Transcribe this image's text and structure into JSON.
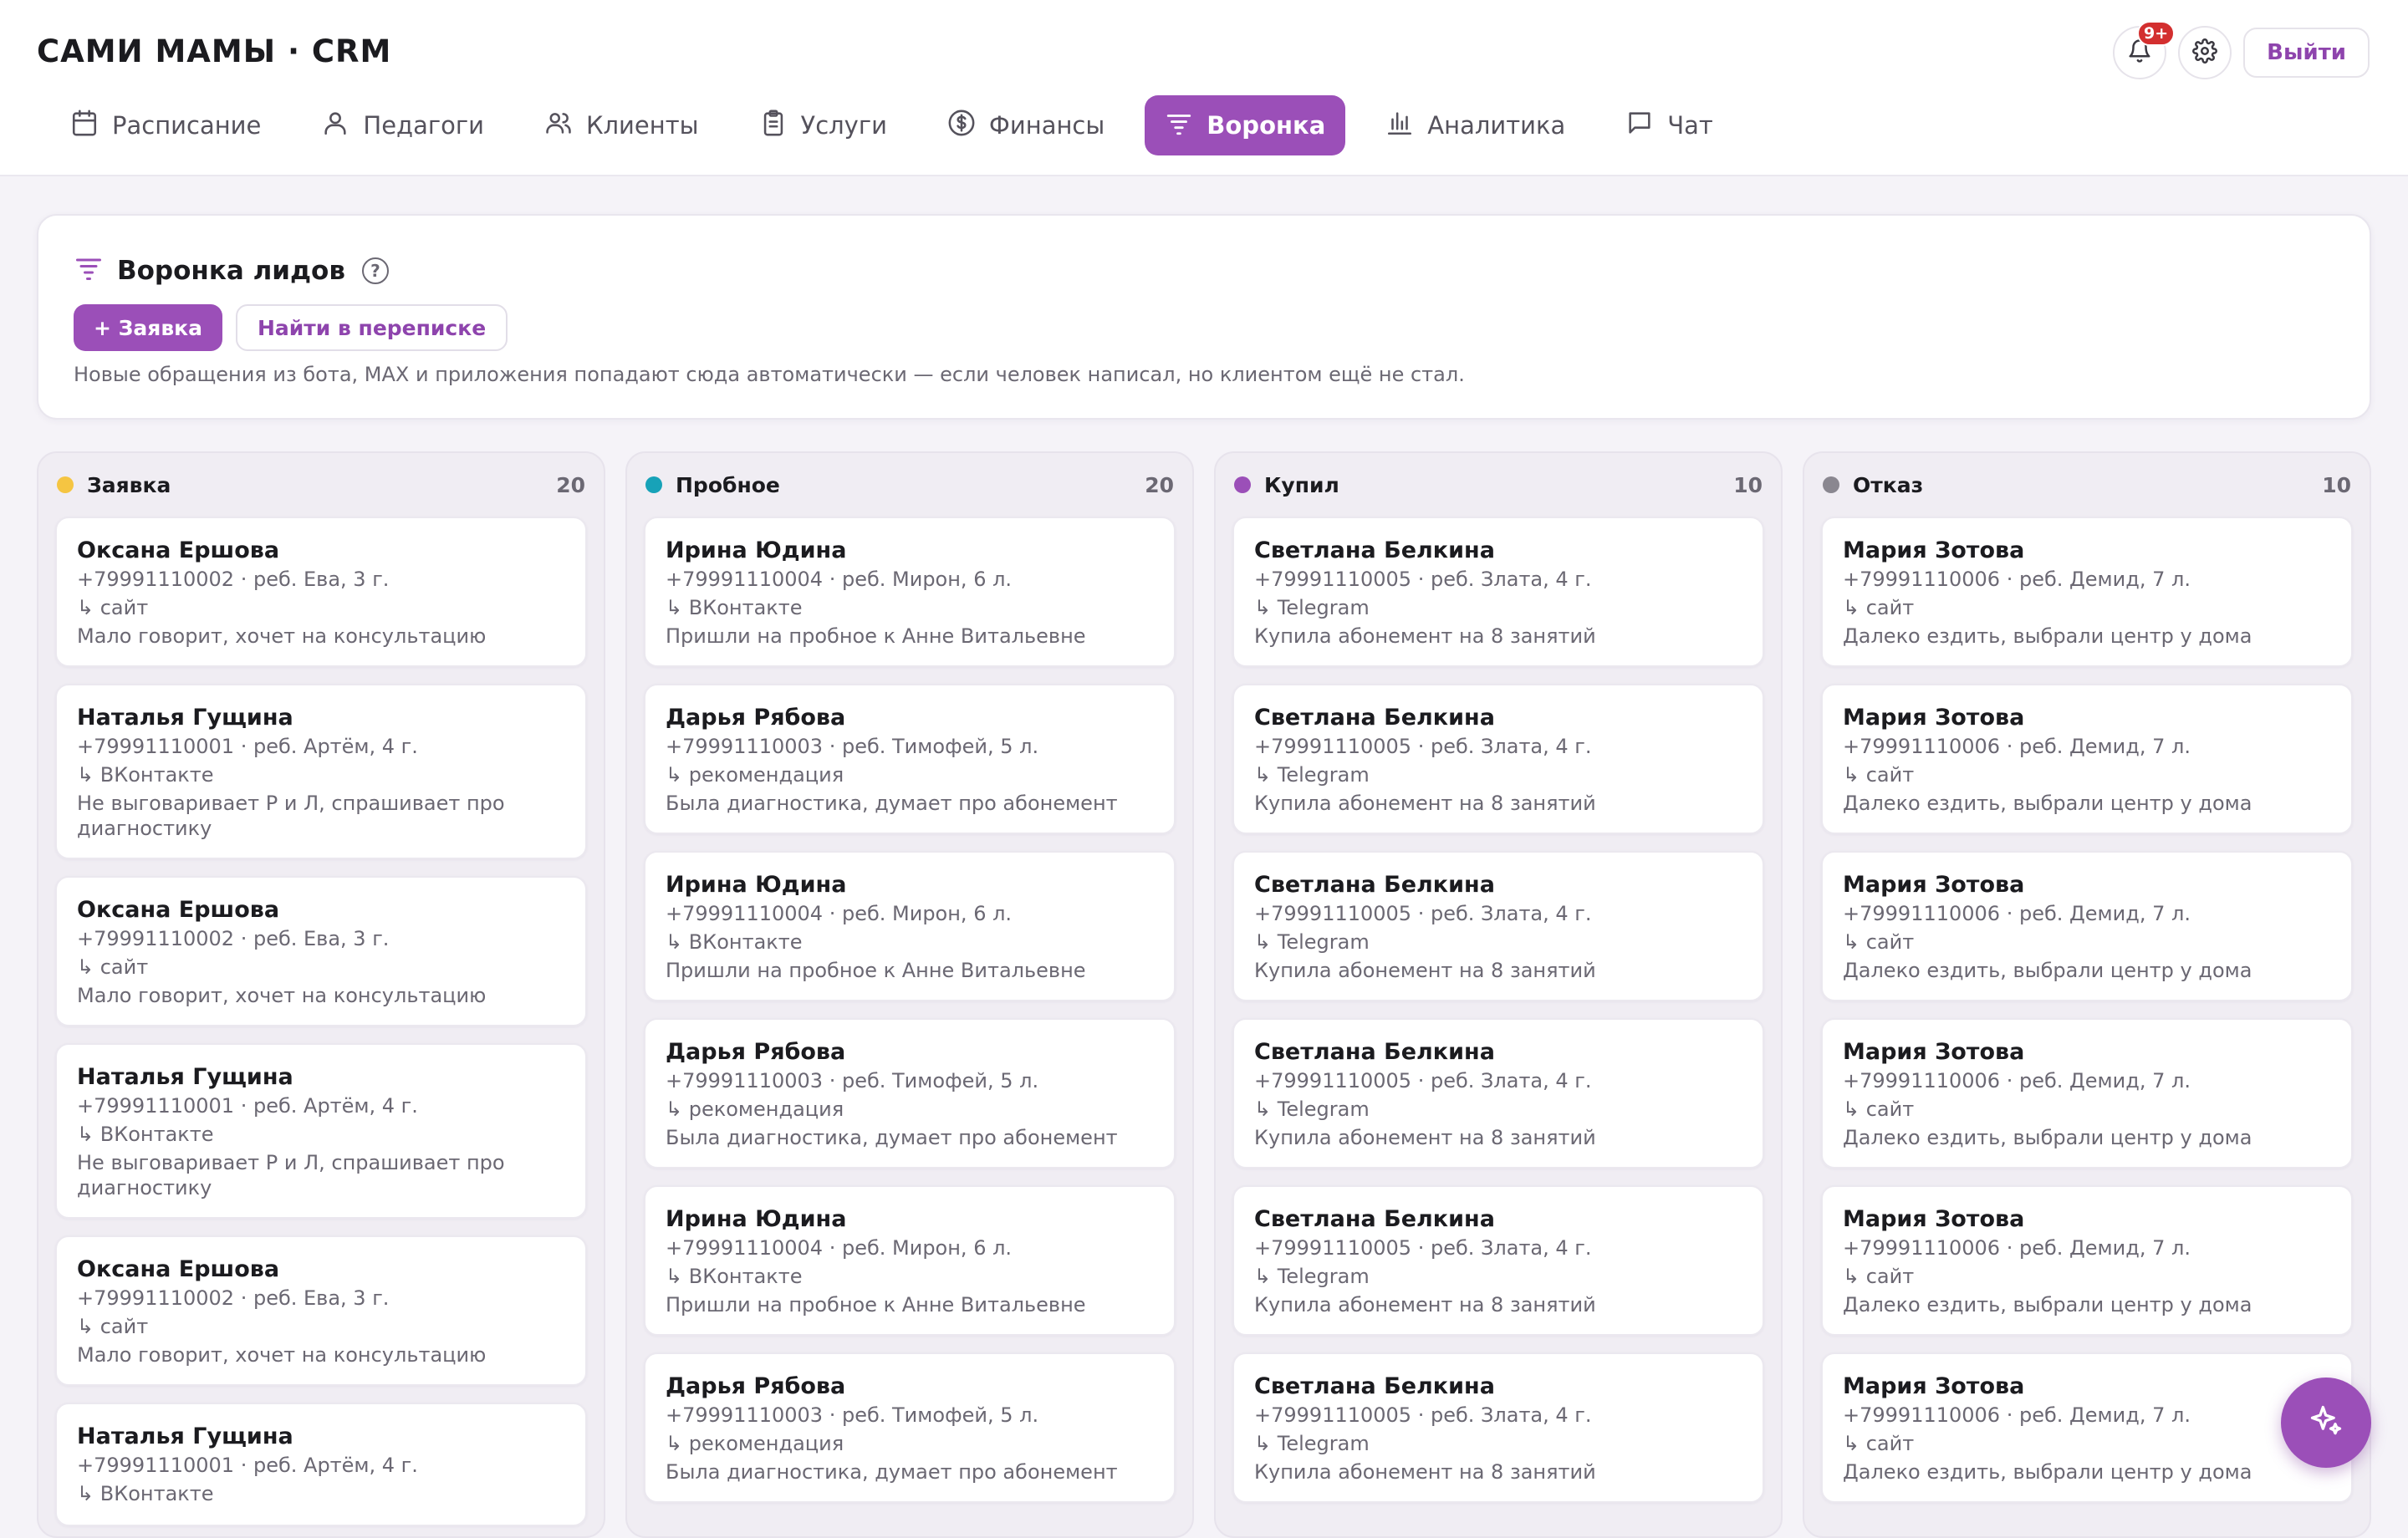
{
  "app": {
    "title": "САМИ МАМЫ · CRM"
  },
  "header": {
    "notifications_badge": "9+",
    "notifications_icon": "bell-icon",
    "settings_icon": "gear-icon",
    "logout_label": "Выйти"
  },
  "nav": {
    "items": [
      {
        "label": "Расписание",
        "icon": "calendar-icon"
      },
      {
        "label": "Педагоги",
        "icon": "user-icon"
      },
      {
        "label": "Клиенты",
        "icon": "users-icon"
      },
      {
        "label": "Услуги",
        "icon": "clipboard-icon"
      },
      {
        "label": "Финансы",
        "icon": "dollar-icon"
      },
      {
        "label": "Воронка",
        "icon": "funnel-icon"
      },
      {
        "label": "Аналитика",
        "icon": "bar-chart-icon"
      },
      {
        "label": "Чат",
        "icon": "chat-icon"
      }
    ],
    "active": "Воронка"
  },
  "intro": {
    "title": "Воронка лидов",
    "help": "?",
    "add_button": "+ Заявка",
    "find_button": "Найти в переписке",
    "note": "Новые обращения из бота, MAX и приложения попадают сюда автоматически — если человек написал, но клиентом ещё не стал."
  },
  "columns": [
    {
      "name": "Заявка",
      "count": "20",
      "color": "#f5c542",
      "cards": [
        {
          "name": "Оксана Ершова",
          "meta": "+79991110002 · реб. Ева, 3 г.",
          "source": "↳ сайт",
          "note": "Мало говорит, хочет на консультацию"
        },
        {
          "name": "Наталья Гущина",
          "meta": "+79991110001 · реб. Артём, 4 г.",
          "source": "↳ ВКонтакте",
          "note": "Не выговаривает Р и Л, спрашивает про диагностику"
        },
        {
          "name": "Оксана Ершова",
          "meta": "+79991110002 · реб. Ева, 3 г.",
          "source": "↳ сайт",
          "note": "Мало говорит, хочет на консультацию"
        },
        {
          "name": "Наталья Гущина",
          "meta": "+79991110001 · реб. Артём, 4 г.",
          "source": "↳ ВКонтакте",
          "note": "Не выговаривает Р и Л, спрашивает про диагностику"
        },
        {
          "name": "Оксана Ершова",
          "meta": "+79991110002 · реб. Ева, 3 г.",
          "source": "↳ сайт",
          "note": "Мало говорит, хочет на консультацию"
        },
        {
          "name": "Наталья Гущина",
          "meta": "+79991110001 · реб. Артём, 4 г.",
          "source": "↳ ВКонтакте",
          "note": ""
        }
      ]
    },
    {
      "name": "Пробное",
      "count": "20",
      "color": "#17a2b8",
      "cards": [
        {
          "name": "Ирина Юдина",
          "meta": "+79991110004 · реб. Мирон, 6 л.",
          "source": "↳ ВКонтакте",
          "note": "Пришли на пробное к Анне Витальевне"
        },
        {
          "name": "Дарья Рябова",
          "meta": "+79991110003 · реб. Тимофей, 5 л.",
          "source": "↳ рекомендация",
          "note": "Была диагностика, думает про абонемент"
        },
        {
          "name": "Ирина Юдина",
          "meta": "+79991110004 · реб. Мирон, 6 л.",
          "source": "↳ ВКонтакте",
          "note": "Пришли на пробное к Анне Витальевне"
        },
        {
          "name": "Дарья Рябова",
          "meta": "+79991110003 · реб. Тимофей, 5 л.",
          "source": "↳ рекомендация",
          "note": "Была диагностика, думает про абонемент"
        },
        {
          "name": "Ирина Юдина",
          "meta": "+79991110004 · реб. Мирон, 6 л.",
          "source": "↳ ВКонтакте",
          "note": "Пришли на пробное к Анне Витальевне"
        },
        {
          "name": "Дарья Рябова",
          "meta": "+79991110003 · реб. Тимофей, 5 л.",
          "source": "↳ рекомендация",
          "note": "Была диагностика, думает про абонемент"
        }
      ]
    },
    {
      "name": "Купил",
      "count": "10",
      "color": "#9b4fb8",
      "cards": [
        {
          "name": "Светлана Белкина",
          "meta": "+79991110005 · реб. Злата, 4 г.",
          "source": "↳ Telegram",
          "note": "Купила абонемент на 8 занятий"
        },
        {
          "name": "Светлана Белкина",
          "meta": "+79991110005 · реб. Злата, 4 г.",
          "source": "↳ Telegram",
          "note": "Купила абонемент на 8 занятий"
        },
        {
          "name": "Светлана Белкина",
          "meta": "+79991110005 · реб. Злата, 4 г.",
          "source": "↳ Telegram",
          "note": "Купила абонемент на 8 занятий"
        },
        {
          "name": "Светлана Белкина",
          "meta": "+79991110005 · реб. Злата, 4 г.",
          "source": "↳ Telegram",
          "note": "Купила абонемент на 8 занятий"
        },
        {
          "name": "Светлана Белкина",
          "meta": "+79991110005 · реб. Злата, 4 г.",
          "source": "↳ Telegram",
          "note": "Купила абонемент на 8 занятий"
        },
        {
          "name": "Светлана Белкина",
          "meta": "+79991110005 · реб. Злата, 4 г.",
          "source": "↳ Telegram",
          "note": "Купила абонемент на 8 занятий"
        }
      ]
    },
    {
      "name": "Отказ",
      "count": "10",
      "color": "#8a8790",
      "cards": [
        {
          "name": "Мария Зотова",
          "meta": "+79991110006 · реб. Демид, 7 л.",
          "source": "↳ сайт",
          "note": "Далеко ездить, выбрали центр у дома"
        },
        {
          "name": "Мария Зотова",
          "meta": "+79991110006 · реб. Демид, 7 л.",
          "source": "↳ сайт",
          "note": "Далеко ездить, выбрали центр у дома"
        },
        {
          "name": "Мария Зотова",
          "meta": "+79991110006 · реб. Демид, 7 л.",
          "source": "↳ сайт",
          "note": "Далеко ездить, выбрали центр у дома"
        },
        {
          "name": "Мария Зотова",
          "meta": "+79991110006 · реб. Демид, 7 л.",
          "source": "↳ сайт",
          "note": "Далеко ездить, выбрали центр у дома"
        },
        {
          "name": "Мария Зотова",
          "meta": "+79991110006 · реб. Демид, 7 л.",
          "source": "↳ сайт",
          "note": "Далеко ездить, выбрали центр у дома"
        },
        {
          "name": "Мария Зотова",
          "meta": "+79991110006 · реб. Демид, 7 л.",
          "source": "↳ сайт",
          "note": "Далеко ездить, выбрали центр у дома"
        }
      ]
    }
  ],
  "fab": {
    "icon": "sparkle-icon"
  },
  "colors": {
    "accent": "#9b4fb8",
    "badge": "#d32f2f"
  }
}
